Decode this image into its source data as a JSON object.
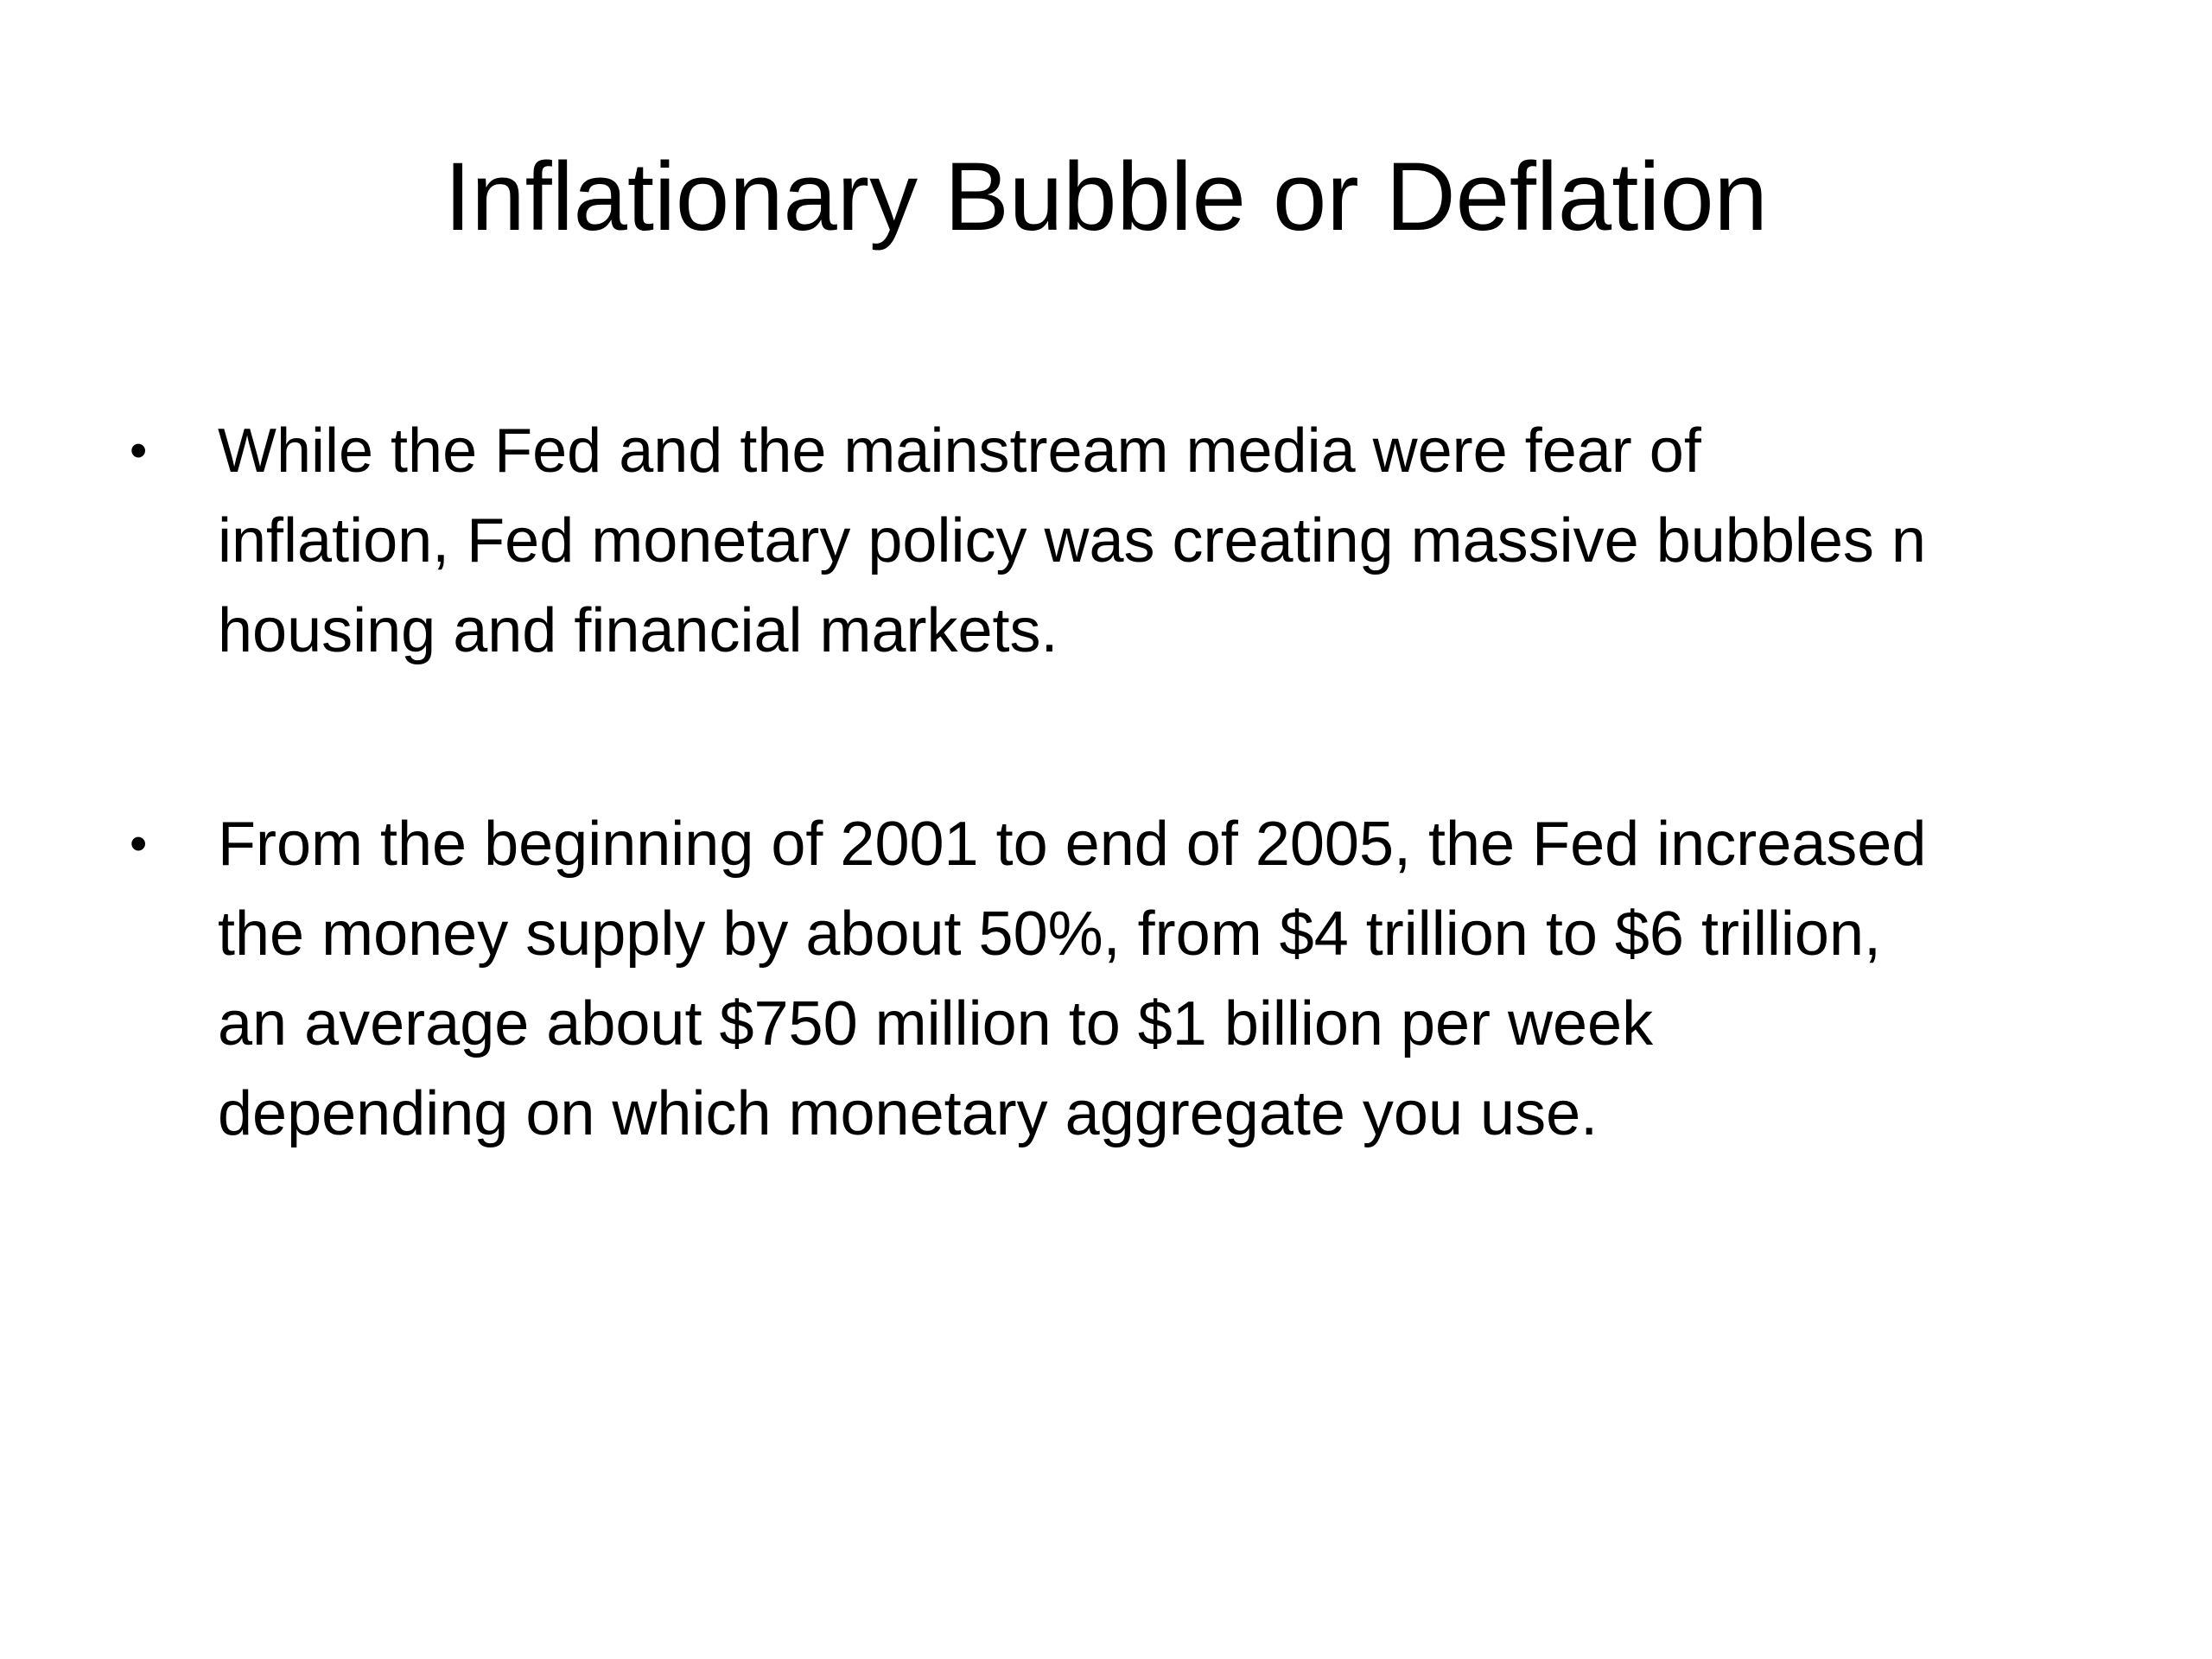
{
  "slide": {
    "title": "Inflationary Bubble or Deflation",
    "bullets": [
      {
        "marker": "•",
        "lines": [
          "While the Fed and the mainstream media were fear of",
          "inflation, Fed monetary policy was creating massive bubbles n",
          "housing and financial markets."
        ]
      },
      {
        "marker": "•",
        "lines": [
          "From the beginning  of 2001 to end of 2005, the Fed increased",
          "the money supply by about 50%, from  $4 trillion to $6 trillion,",
          "an average about $750 million to $1 billion per week",
          "depending on which monetary aggregate you use."
        ]
      }
    ]
  }
}
